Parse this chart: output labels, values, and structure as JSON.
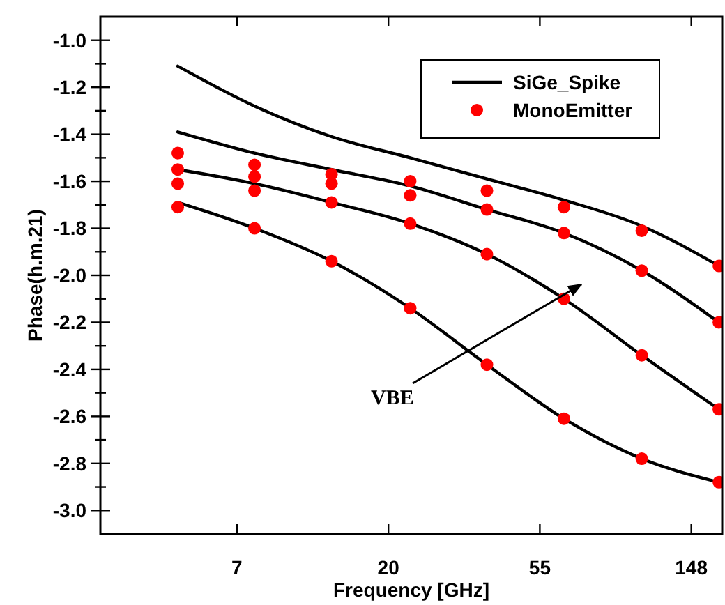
{
  "chart_data": {
    "type": "line",
    "xlabel": "Frequency [GHz]",
    "ylabel": "Phase(h.m.21)",
    "log": "x",
    "xlim": [
      3,
      182
    ],
    "ylim": [
      -3.1,
      -0.9
    ],
    "xticks": [
      {
        "value": 7.389,
        "label": "7"
      },
      {
        "value": 20.09,
        "label": "20"
      },
      {
        "value": 54.6,
        "label": "55"
      },
      {
        "value": 148.4,
        "label": "148"
      }
    ],
    "yticks": [
      {
        "value": -3.0,
        "label": "-3.0"
      },
      {
        "value": -2.8,
        "label": "-2.8"
      },
      {
        "value": -2.6,
        "label": "-2.6"
      },
      {
        "value": -2.4,
        "label": "-2.4"
      },
      {
        "value": -2.2,
        "label": "-2.2"
      },
      {
        "value": -2.0,
        "label": "-2.0"
      },
      {
        "value": -1.8,
        "label": "-1.8"
      },
      {
        "value": -1.6,
        "label": "-1.6"
      },
      {
        "value": -1.4,
        "label": "-1.4"
      },
      {
        "value": -1.2,
        "label": "-1.2"
      },
      {
        "value": -1.0,
        "label": "-1.0"
      },
      {
        "value": -2.9,
        "label": null
      },
      {
        "value": -2.7,
        "label": null
      },
      {
        "value": -2.5,
        "label": null
      },
      {
        "value": -2.3,
        "label": null
      },
      {
        "value": -2.1,
        "label": null
      },
      {
        "value": -1.9,
        "label": null
      },
      {
        "value": -1.7,
        "label": null
      },
      {
        "value": -1.5,
        "label": null
      },
      {
        "value": -1.3,
        "label": null
      },
      {
        "value": -1.1,
        "label": null
      }
    ],
    "x": [
      5.0,
      8.3,
      13.8,
      23.2,
      38.5,
      64,
      107,
      178
    ],
    "series": [
      {
        "name": "SiGe_Spike",
        "color": "#000000",
        "values": [
          -1.11,
          -1.28,
          -1.41,
          -1.5,
          -1.59,
          -1.68,
          -1.79,
          -1.96
        ]
      },
      {
        "color": "#000000",
        "values": [
          -1.39,
          -1.48,
          -1.55,
          -1.62,
          -1.72,
          -1.82,
          -1.98,
          -2.2
        ]
      },
      {
        "color": "#000000",
        "values": [
          -1.55,
          -1.61,
          -1.69,
          -1.78,
          -1.91,
          -2.1,
          -2.34,
          -2.57
        ]
      },
      {
        "color": "#000000",
        "values": [
          -1.69,
          -1.8,
          -1.94,
          -2.14,
          -2.38,
          -2.61,
          -2.78,
          -2.88
        ]
      },
      {
        "name": "MonoEmitter",
        "type": "scatter",
        "marker": "circle",
        "color": "#ff0000",
        "x": [
          5.0,
          5.0,
          5.0,
          5.0,
          8.3,
          8.3,
          8.3,
          8.3,
          13.8,
          13.8,
          13.8,
          13.8,
          23.2,
          23.2,
          23.2,
          23.2,
          38.5,
          38.5,
          38.5,
          38.5,
          64,
          64,
          64,
          64,
          107,
          107,
          107,
          107,
          178,
          178,
          178,
          178
        ],
        "values": [
          -1.48,
          -1.55,
          -1.61,
          -1.71,
          -1.53,
          -1.58,
          -1.64,
          -1.8,
          -1.57,
          -1.61,
          -1.69,
          -1.94,
          -1.6,
          -1.66,
          -1.78,
          -2.14,
          -1.64,
          -1.72,
          -1.91,
          -2.38,
          -1.71,
          -1.82,
          -2.1,
          -2.61,
          -1.81,
          -1.98,
          -2.34,
          -2.78,
          -1.96,
          -2.2,
          -2.57,
          -2.88
        ]
      }
    ],
    "marker": "none",
    "line_style": "solid",
    "legend": "top right",
    "grid": false,
    "annotations": [
      "VBE"
    ]
  }
}
